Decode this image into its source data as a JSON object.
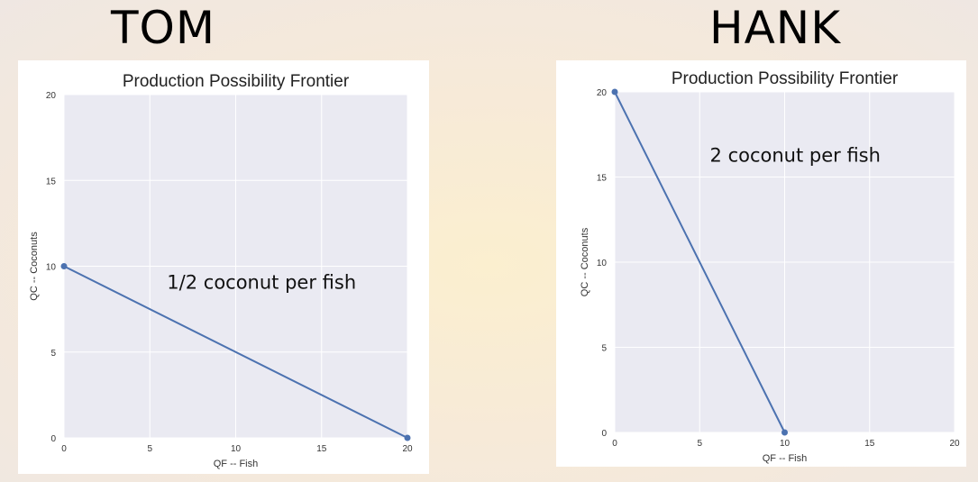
{
  "headings": {
    "left": "TOM",
    "right": "HANK"
  },
  "colors": {
    "plot_bg": "#eaeaf2",
    "grid": "#ffffff",
    "line": "#4c72b0"
  },
  "chart_data": [
    {
      "type": "line",
      "title": "Production Possibility Frontier",
      "xlabel": "QF -- Fish",
      "ylabel": "QC -- Coconuts",
      "xlim": [
        0,
        20
      ],
      "ylim": [
        0,
        20
      ],
      "xticks": [
        0,
        5,
        10,
        15,
        20
      ],
      "yticks": [
        0,
        5,
        10,
        15,
        20
      ],
      "grid": true,
      "series": [
        {
          "x": [
            0,
            20
          ],
          "y": [
            10,
            0
          ]
        }
      ],
      "annotation": {
        "text": "1/2 coconut per fish",
        "x": 6,
        "y": 8.7
      }
    },
    {
      "type": "line",
      "title": "Production Possibility Frontier",
      "xlabel": "QF -- Fish",
      "ylabel": "QC -- Coconuts",
      "xlim": [
        0,
        20
      ],
      "ylim": [
        0,
        20
      ],
      "xticks": [
        0,
        5,
        10,
        15,
        20
      ],
      "yticks": [
        0,
        5,
        10,
        15,
        20
      ],
      "grid": true,
      "series": [
        {
          "x": [
            0,
            10
          ],
          "y": [
            20,
            0
          ]
        }
      ],
      "annotation": {
        "text": "2 coconut per fish",
        "x": 5.6,
        "y": 15.9
      }
    }
  ]
}
